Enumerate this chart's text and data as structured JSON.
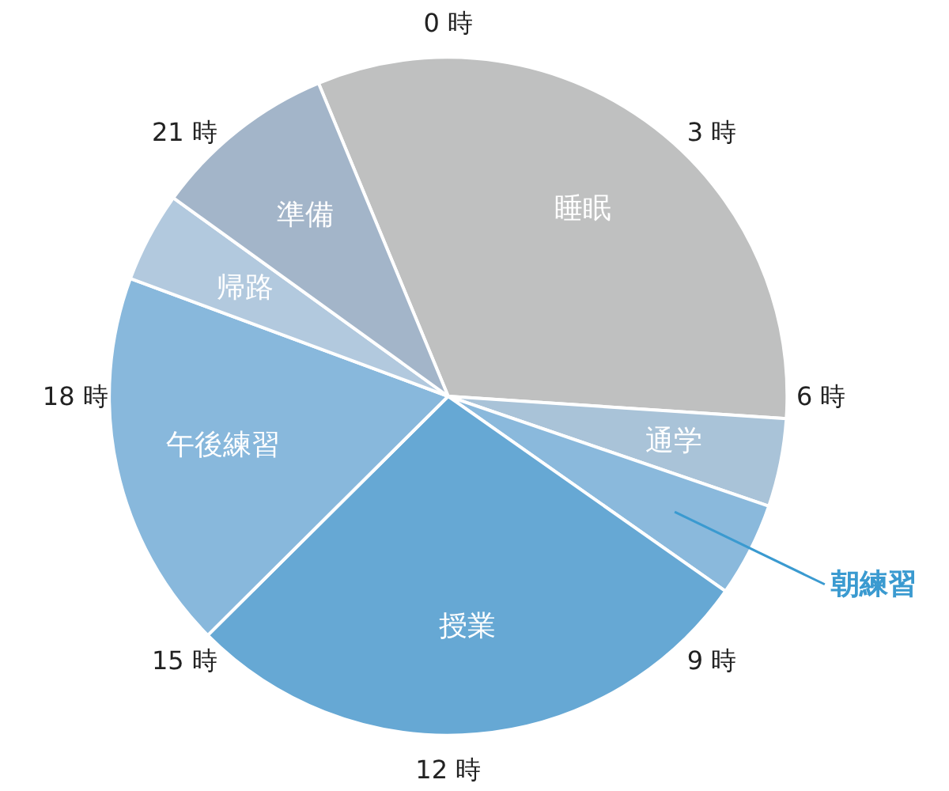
{
  "chart_data": {
    "type": "pie",
    "categories": [
      "睡眠",
      "通学",
      "朝練習",
      "授業",
      "午後練習",
      "帰路",
      "準備"
    ],
    "values": [
      32.3,
      4.2,
      4.5,
      27.8,
      18.1,
      4.3,
      8.8
    ],
    "colors": [
      "#bfc0c0",
      "#a9c3d8",
      "#8ab9dc",
      "#66a8d4",
      "#88b8dc",
      "#b2c9de",
      "#a3b5c9"
    ],
    "annotations": [
      "0 時",
      "3 時",
      "6 時",
      "9 時",
      "12 時",
      "15 時",
      "18 時",
      "21 時"
    ]
  }
}
